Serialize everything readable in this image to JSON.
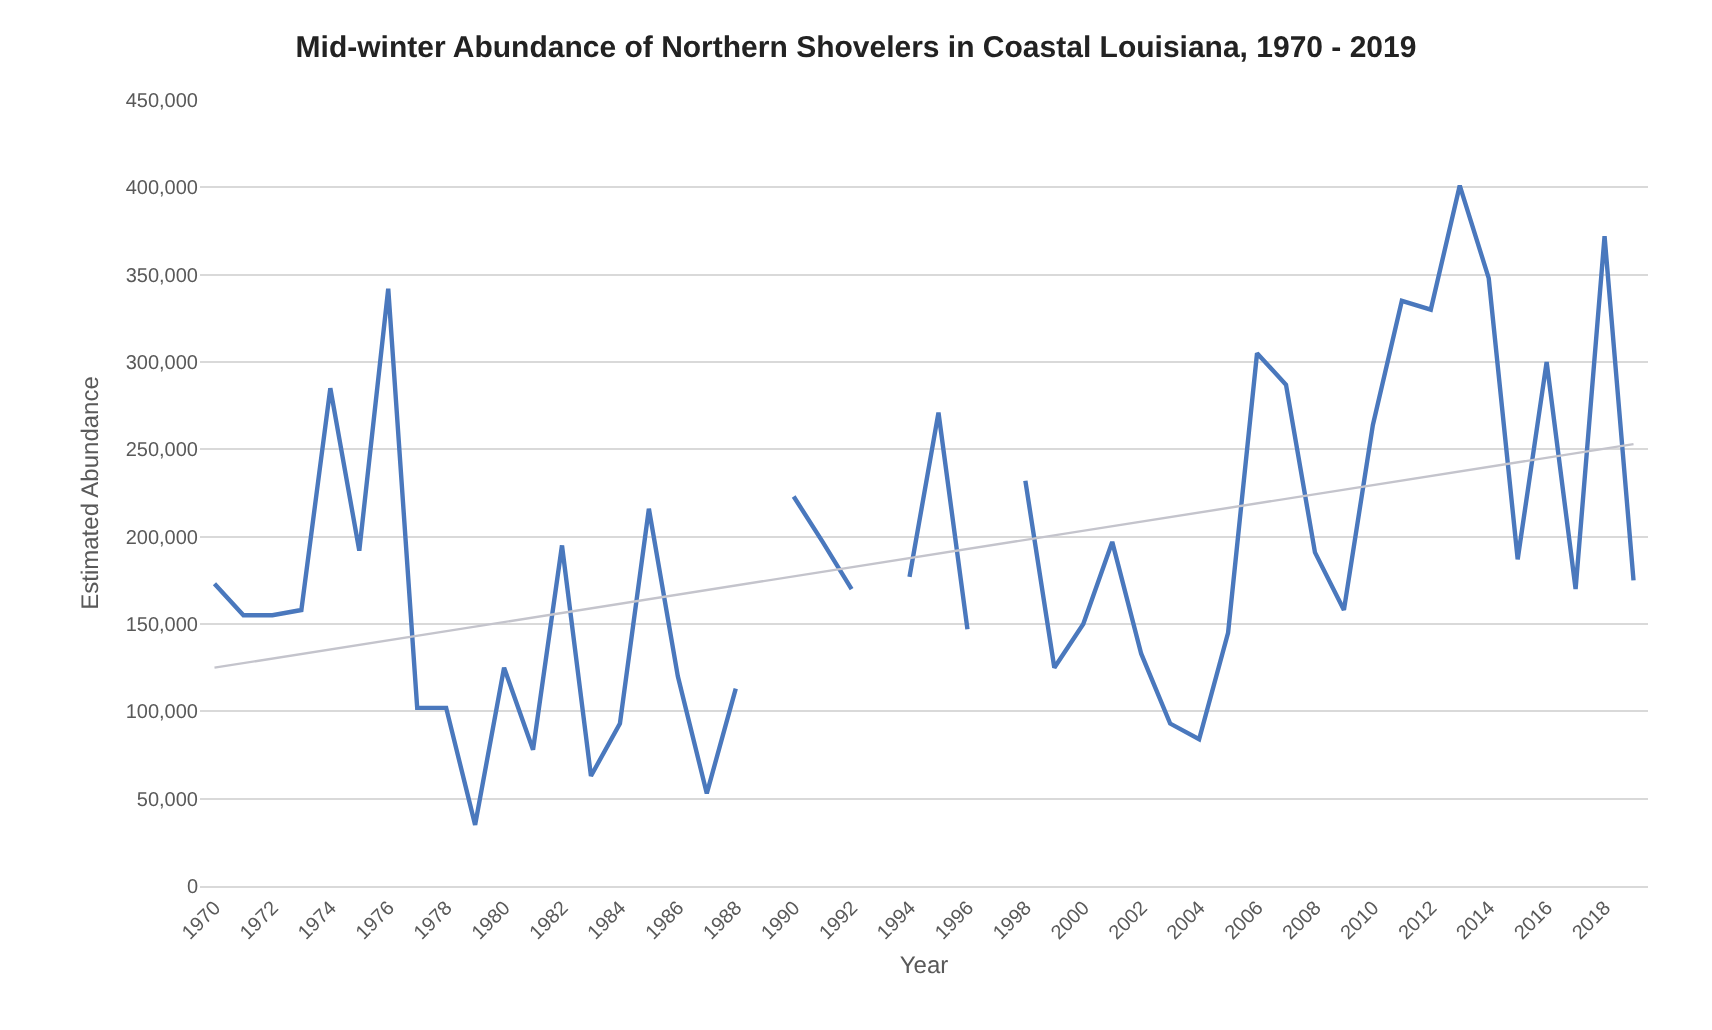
{
  "chart_data": {
    "type": "line",
    "title": "Mid-winter Abundance of Northern Shovelers in Coastal Louisiana, 1970 - 2019",
    "xlabel": "Year",
    "ylabel": "Estimated Abundance",
    "x": [
      1970,
      1971,
      1972,
      1973,
      1974,
      1975,
      1976,
      1977,
      1978,
      1979,
      1980,
      1981,
      1982,
      1983,
      1984,
      1985,
      1986,
      1987,
      1988,
      1989,
      1990,
      1991,
      1992,
      1993,
      1994,
      1995,
      1996,
      1997,
      1998,
      1999,
      2000,
      2001,
      2002,
      2003,
      2004,
      2005,
      2006,
      2007,
      2008,
      2009,
      2010,
      2011,
      2012,
      2013,
      2014,
      2015,
      2016,
      2017,
      2018,
      2019
    ],
    "series": [
      {
        "color": "#4a78bd",
        "values": [
          173000,
          155000,
          155000,
          158000,
          285000,
          192000,
          342000,
          102000,
          102000,
          35000,
          125000,
          78000,
          195000,
          63000,
          93000,
          216000,
          120000,
          53000,
          113000,
          null,
          223000,
          197000,
          170000,
          null,
          177000,
          271000,
          147000,
          null,
          232000,
          125000,
          150000,
          197000,
          133000,
          93000,
          84000,
          145000,
          305000,
          287000,
          191000,
          158000,
          264000,
          335000,
          330000,
          401000,
          348000,
          187000,
          300000,
          170000,
          372000,
          175000
        ]
      },
      {
        "color": "#c4c4cc",
        "x": [
          1970,
          2019
        ],
        "values": [
          125000,
          253000
        ]
      }
    ],
    "xlim": [
      1969.5,
      2019.5
    ],
    "xticks": [
      1970,
      1972,
      1974,
      1976,
      1978,
      1980,
      1982,
      1984,
      1986,
      1988,
      1990,
      1992,
      1994,
      1996,
      1998,
      2000,
      2002,
      2004,
      2006,
      2008,
      2010,
      2012,
      2014,
      2016,
      2018
    ],
    "ylim": [
      0,
      450000
    ],
    "yticks": [
      {
        "value": 0,
        "label": "0"
      },
      {
        "value": 50000,
        "label": "50,000"
      },
      {
        "value": 100000,
        "label": "100,000"
      },
      {
        "value": 150000,
        "label": "150,000"
      },
      {
        "value": 200000,
        "label": "200,000"
      },
      {
        "value": 250000,
        "label": "250,000"
      },
      {
        "value": 300000,
        "label": "300,000"
      },
      {
        "value": 350000,
        "label": "350,000"
      },
      {
        "value": 400000,
        "label": "400,000"
      },
      {
        "value": 450000,
        "label": "450,000"
      }
    ],
    "grid": "y",
    "marker": "none",
    "line_style": "solid"
  }
}
